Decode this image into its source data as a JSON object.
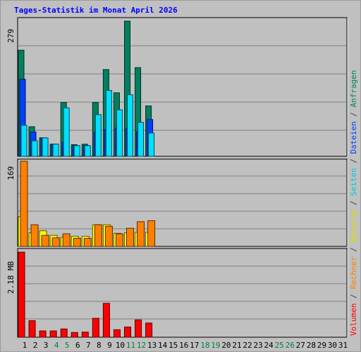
{
  "chart_data": {
    "type": "bar",
    "title": "Tages-Statistik im Monat April 2026",
    "days": [
      "1",
      "2",
      "3",
      "4",
      "5",
      "6",
      "7",
      "8",
      "9",
      "10",
      "11",
      "12",
      "13",
      "14",
      "15",
      "16",
      "17",
      "18",
      "19",
      "20",
      "21",
      "22",
      "23",
      "24",
      "25",
      "26",
      "27",
      "28",
      "29",
      "30",
      "31"
    ],
    "weekend_days": [
      "4",
      "5",
      "11",
      "12",
      "18",
      "19",
      "25",
      "26"
    ],
    "panels": [
      {
        "name": "top",
        "axis_max_label": "279",
        "ylim": [
          0,
          279
        ],
        "series": [
          {
            "name": "Anfragen",
            "color": "#008060",
            "values": [
              219,
              61,
              38,
              25,
              111,
              24,
              25,
              111,
              179,
              131,
              279,
              183,
              104,
              0,
              0,
              0,
              0,
              0,
              0,
              0,
              0,
              0,
              0,
              0,
              0,
              0,
              0,
              0,
              0,
              0,
              0
            ]
          },
          {
            "name": "Dateien",
            "color": "#0040ff",
            "values": [
              159,
              50,
              38,
              25,
              29,
              22,
              22,
              50,
              56,
              58,
              58,
              50,
              76,
              0,
              0,
              0,
              0,
              0,
              0,
              0,
              0,
              0,
              0,
              0,
              0,
              0,
              0,
              0,
              0,
              0,
              0
            ]
          },
          {
            "name": "Seiten",
            "color": "#00e0ff",
            "values": [
              64,
              32,
              38,
              25,
              100,
              22,
              22,
              86,
              136,
              96,
              127,
              70,
              48,
              0,
              0,
              0,
              0,
              0,
              0,
              0,
              0,
              0,
              0,
              0,
              0,
              0,
              0,
              0,
              0,
              0,
              0
            ]
          }
        ]
      },
      {
        "name": "middle",
        "axis_max_label": "169",
        "ylim": [
          0,
          169
        ],
        "series": [
          {
            "name": "Besuche",
            "color": "#ffff00",
            "values": [
              59,
              27,
              31,
              22,
              18,
              20,
              20,
              43,
              43,
              26,
              27,
              28,
              28,
              0,
              0,
              0,
              0,
              0,
              0,
              0,
              0,
              0,
              0,
              0,
              0,
              0,
              0,
              0,
              0,
              0,
              0
            ]
          },
          {
            "name": "Rechner",
            "color": "#ff8000",
            "values": [
              169,
              43,
              22,
              17,
              25,
              16,
              16,
              43,
              40,
              25,
              36,
              49,
              51,
              0,
              0,
              0,
              0,
              0,
              0,
              0,
              0,
              0,
              0,
              0,
              0,
              0,
              0,
              0,
              0,
              0,
              0
            ]
          }
        ]
      },
      {
        "name": "bottom",
        "axis_max_label": "2.18 MB",
        "ylim": [
          0,
          2.18
        ],
        "series": [
          {
            "name": "Volumen",
            "color": "#ff0000",
            "values": [
              2.16,
              0.42,
              0.16,
              0.16,
              0.21,
              0.12,
              0.13,
              0.48,
              0.86,
              0.19,
              0.26,
              0.44,
              0.36,
              0,
              0,
              0,
              0,
              0,
              0,
              0,
              0,
              0,
              0,
              0,
              0,
              0,
              0,
              0,
              0,
              0,
              0
            ]
          }
        ]
      }
    ],
    "legend_right": [
      {
        "text": "Volumen",
        "color": "#ff0000"
      },
      {
        "text": " / ",
        "color": "#404040"
      },
      {
        "text": "Rechner",
        "color": "#ff8000"
      },
      {
        "text": " / ",
        "color": "#404040"
      },
      {
        "text": "Besuche",
        "color": "#dddd00"
      },
      {
        "text": " / ",
        "color": "#404040"
      },
      {
        "text": "Seiten",
        "color": "#00c8e0"
      },
      {
        "text": " / ",
        "color": "#404040"
      },
      {
        "text": "Dateien",
        "color": "#0040ff"
      },
      {
        "text": " / ",
        "color": "#404040"
      },
      {
        "text": "Anfragen",
        "color": "#008060"
      }
    ],
    "colors": {
      "title": "#0000ff",
      "weekday_label": "#000000",
      "weekend_label": "#008040",
      "panel_bg": "#c0c0c0",
      "grid": "#808080"
    }
  }
}
